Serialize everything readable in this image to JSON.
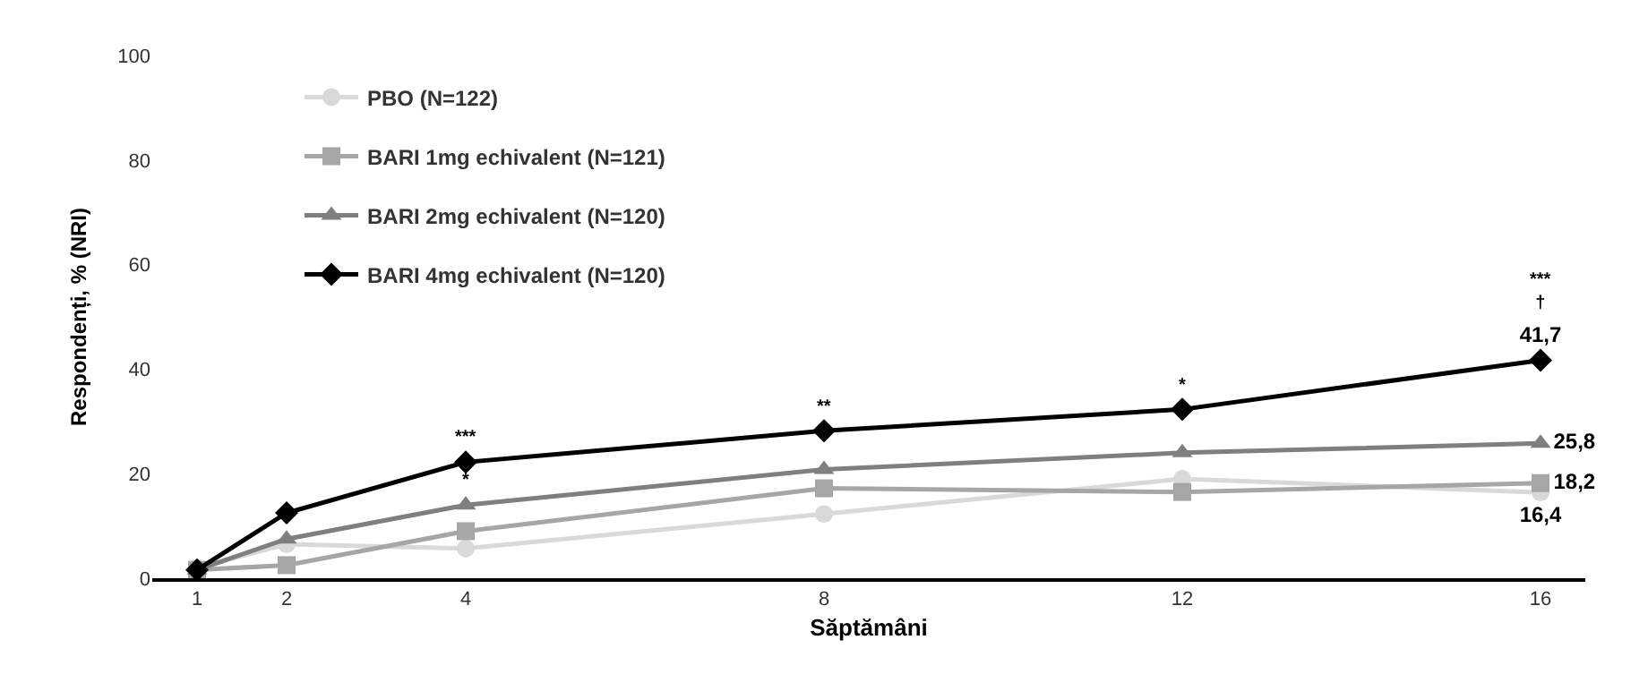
{
  "chart_data": {
    "type": "line",
    "xlabel": "Săptămâni",
    "ylabel": "Respondenți, % (NRI)",
    "x": [
      1,
      2,
      4,
      8,
      12,
      16
    ],
    "xlim": [
      0.5,
      16.5
    ],
    "xticks": [
      1,
      2,
      4,
      8,
      12,
      16
    ],
    "ylim": [
      0,
      100
    ],
    "yticks": [
      0,
      20,
      40,
      60,
      80,
      100
    ],
    "series": [
      {
        "name": "PBO (N=122)",
        "color": "#d9d9d9",
        "marker": "circle",
        "values": [
          2,
          6.5,
          5.7,
          12.3,
          19,
          16.4
        ],
        "value_labels": [
          null,
          null,
          null,
          null,
          null,
          "16,4"
        ]
      },
      {
        "name": "BARI 1mg echivalent (N=121)",
        "color": "#a6a6a6",
        "marker": "square",
        "values": [
          1.6,
          2.5,
          9,
          17.2,
          16.5,
          18.2
        ],
        "value_labels": [
          null,
          null,
          null,
          null,
          null,
          "18,2"
        ]
      },
      {
        "name": "BARI 2mg echivalent (N=120)",
        "color": "#7f7f7f",
        "marker": "triangle",
        "values": [
          1.6,
          7.5,
          14,
          20.8,
          24,
          25.8
        ],
        "value_labels": [
          null,
          null,
          null,
          null,
          null,
          "25,8"
        ]
      },
      {
        "name": "BARI 4mg echivalent (N=120)",
        "color": "#000000",
        "marker": "diamond",
        "values": [
          1.6,
          12.5,
          22.2,
          28.2,
          32.3,
          41.7
        ],
        "value_labels": [
          null,
          null,
          null,
          null,
          null,
          "41,7"
        ]
      }
    ],
    "annotations": [
      {
        "text": "***",
        "x": 4,
        "y": 22.2
      },
      {
        "text": "*",
        "x": 4,
        "y": 14
      },
      {
        "text": "**",
        "x": 8,
        "y": 28.2
      },
      {
        "text": "*",
        "x": 12,
        "y": 32.3
      },
      {
        "text": "***\n†",
        "x": 16,
        "y": 41.7
      }
    ],
    "grid": false,
    "legend": "top left"
  }
}
